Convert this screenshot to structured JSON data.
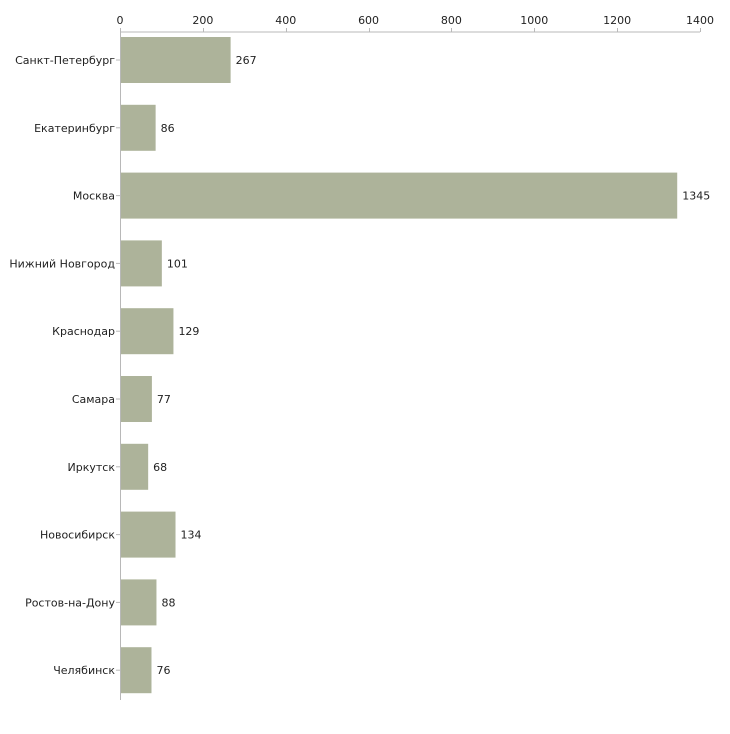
{
  "chart_data": {
    "type": "bar",
    "orientation": "horizontal",
    "categories": [
      "Санкт-Петербург",
      "Екатеринбург",
      "Москва",
      "Нижний Новгород",
      "Краснодар",
      "Самара",
      "Иркутск",
      "Новосибирск",
      "Ростов-на-Дону",
      "Челябинск"
    ],
    "values": [
      267,
      86,
      1345,
      101,
      129,
      77,
      68,
      134,
      88,
      76
    ],
    "xlim": [
      0,
      1400
    ],
    "xticks": [
      0,
      200,
      400,
      600,
      800,
      1000,
      1200,
      1400
    ],
    "xaxis_position": "top",
    "title": "",
    "xlabel": "",
    "ylabel": "",
    "grid": false,
    "bar_color": "#adb39a",
    "axis_color": "#b8b8b8",
    "text_color": "#222222"
  }
}
